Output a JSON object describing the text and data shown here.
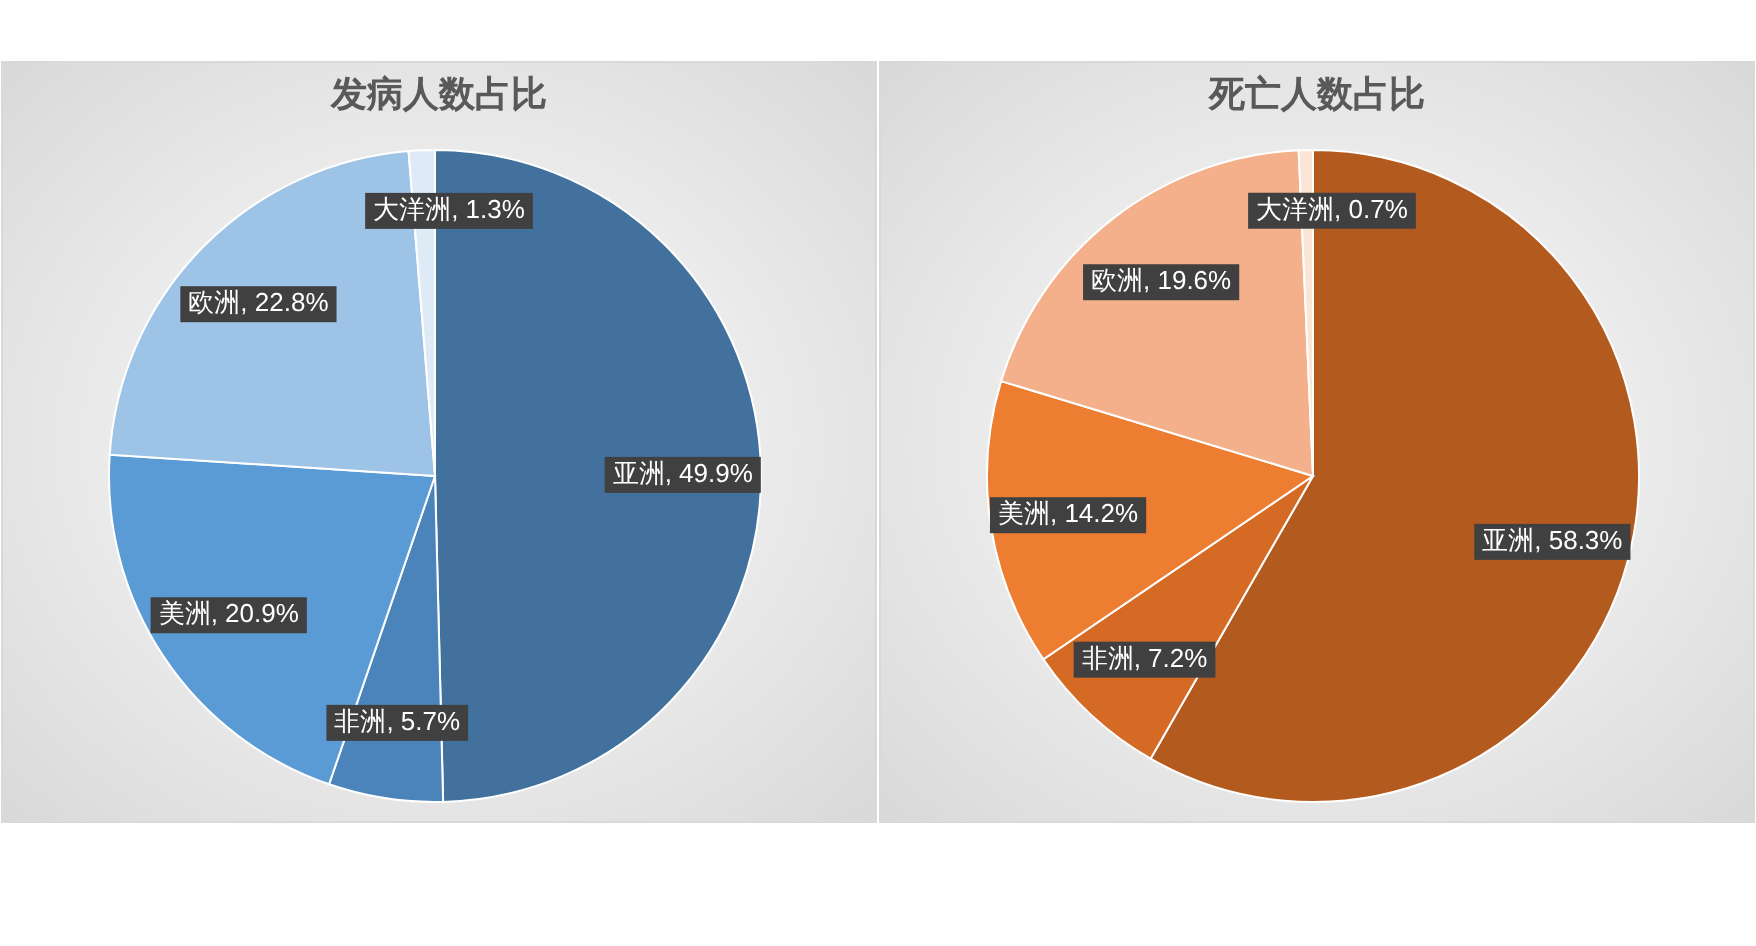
{
  "chart_data": [
    {
      "type": "pie",
      "title": "发病人数占比",
      "categories": [
        "亚洲",
        "非洲",
        "美洲",
        "欧洲",
        "大洋洲"
      ],
      "values": [
        49.9,
        5.7,
        20.9,
        22.8,
        1.3
      ],
      "colors": [
        "#41719c",
        "#4a84bb",
        "#5b9bd5",
        "#9dc3e6",
        "#deebf7"
      ],
      "value_labels": [
        ", 49.9%",
        ", 5.7%",
        ", 20.9%",
        ", 22.8%",
        ", 1.3%"
      ]
    },
    {
      "type": "pie",
      "title": "死亡人数占比",
      "categories": [
        "亚洲",
        "非洲",
        "美洲",
        "欧洲",
        "大洋洲"
      ],
      "values": [
        58.3,
        7.2,
        14.2,
        19.6,
        0.7
      ],
      "colors": [
        "#b35a1f",
        "#d46a24",
        "#ed7d31",
        "#f4b08a",
        "#fbe5d6"
      ],
      "value_labels": [
        ", 58.3%",
        ", 7.2%",
        ", 14.2%",
        ", 19.6%",
        ", 0.7%"
      ]
    }
  ]
}
